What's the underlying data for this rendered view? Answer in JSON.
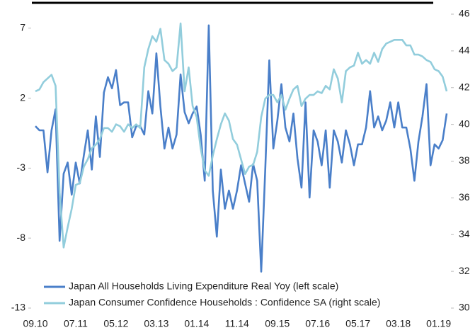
{
  "chart_data": {
    "type": "line",
    "categories": [
      "09.10",
      null,
      null,
      null,
      null,
      null,
      null,
      null,
      null,
      null,
      "07.11",
      null,
      null,
      null,
      null,
      null,
      null,
      null,
      null,
      null,
      "05.12",
      null,
      null,
      null,
      null,
      null,
      null,
      null,
      null,
      null,
      "03.13",
      null,
      null,
      null,
      null,
      null,
      null,
      null,
      null,
      null,
      "01.14",
      null,
      null,
      null,
      null,
      null,
      null,
      null,
      null,
      null,
      "11.14",
      null,
      null,
      null,
      null,
      null,
      null,
      null,
      null,
      null,
      "09.15",
      null,
      null,
      null,
      null,
      null,
      null,
      null,
      null,
      null,
      "07.16",
      null,
      null,
      null,
      null,
      null,
      null,
      null,
      null,
      null,
      "05.17",
      null,
      null,
      null,
      null,
      null,
      null,
      null,
      null,
      null,
      "03.18",
      null,
      null,
      null,
      null,
      null,
      null,
      null,
      null,
      null,
      "01.19",
      null,
      null
    ],
    "series": [
      {
        "name": "Japan All Households Living Expenditure Real Yoy (left scale)",
        "color": "#4a7fc9",
        "axis": "y",
        "values": [
          0.0,
          -0.3,
          -0.3,
          -3.3,
          -0.3,
          1.2,
          -8.2,
          -3.4,
          -2.6,
          -4.9,
          -2.6,
          -4.1,
          -2.1,
          -0.3,
          -3.1,
          0.7,
          -2.2,
          2.4,
          3.5,
          2.7,
          4.0,
          1.5,
          1.7,
          1.7,
          -0.8,
          0.0,
          0.0,
          -0.6,
          2.5,
          0.9,
          5.2,
          1.4,
          -1.6,
          -0.1,
          -1.6,
          -0.6,
          3.7,
          1.0,
          0.2,
          0.9,
          1.4,
          -0.6,
          -3.9,
          7.2,
          -4.6,
          -7.9,
          -3.1,
          -5.9,
          -4.6,
          -5.9,
          -4.6,
          -2.8,
          -4.1,
          -5.4,
          -2.7,
          -3.9,
          -10.4,
          -3.1,
          4.7,
          -1.6,
          0.4,
          3.0,
          -0.1,
          -1.1,
          0.9,
          -2.3,
          -4.4,
          1.7,
          -5.1,
          -0.3,
          -1.1,
          -2.8,
          -0.3,
          -4.4,
          -0.3,
          -1.1,
          -2.6,
          -0.3,
          -1.3,
          -2.8,
          -1.3,
          -1.3,
          -0.1,
          2.5,
          -0.1,
          0.7,
          -0.3,
          0.4,
          1.7,
          -0.1,
          1.7,
          -0.1,
          -0.1,
          -1.6,
          -3.9,
          -1.1,
          0.7,
          3.0,
          -2.8,
          -1.3,
          -1.6,
          -1.0,
          0.9
        ]
      },
      {
        "name": "Japan Consumer Confidence Households : Confidence SA (right scale)",
        "color": "#92cddc",
        "axis": "y2",
        "values": [
          41.8,
          41.9,
          42.3,
          42.5,
          42.7,
          42.1,
          36.3,
          33.3,
          34.4,
          35.4,
          36.7,
          36.8,
          37.7,
          38.1,
          38.7,
          38.9,
          39.2,
          39.8,
          39.8,
          39.6,
          40.0,
          39.9,
          39.6,
          40.0,
          39.8,
          40.0,
          39.8,
          43.1,
          44.1,
          44.8,
          44.5,
          45.2,
          43.5,
          43.3,
          42.9,
          43.1,
          45.5,
          41.8,
          43.1,
          41.0,
          40.4,
          38.7,
          37.5,
          37.2,
          38.3,
          39.2,
          40.0,
          40.6,
          40.2,
          39.2,
          38.9,
          38.1,
          37.3,
          37.7,
          37.8,
          38.5,
          40.4,
          41.4,
          41.6,
          41.6,
          41.2,
          41.6,
          40.8,
          41.4,
          41.9,
          42.1,
          41.0,
          41.4,
          41.6,
          41.6,
          41.8,
          41.7,
          42.1,
          41.9,
          43.0,
          42.5,
          41.2,
          42.9,
          43.1,
          43.2,
          43.9,
          43.3,
          43.5,
          43.3,
          43.9,
          43.4,
          44.1,
          44.4,
          44.5,
          44.6,
          44.6,
          44.6,
          44.3,
          44.3,
          43.8,
          43.8,
          43.7,
          43.5,
          43.4,
          43.0,
          42.9,
          42.6,
          41.8
        ]
      }
    ],
    "ylim": [
      -13,
      8
    ],
    "yticks": [
      7,
      2,
      -3,
      -8,
      -13
    ],
    "y2lim": [
      30,
      46
    ],
    "y2ticks": [
      46,
      44,
      42,
      40,
      38,
      36,
      34,
      32,
      30
    ],
    "legend": "lower left"
  }
}
